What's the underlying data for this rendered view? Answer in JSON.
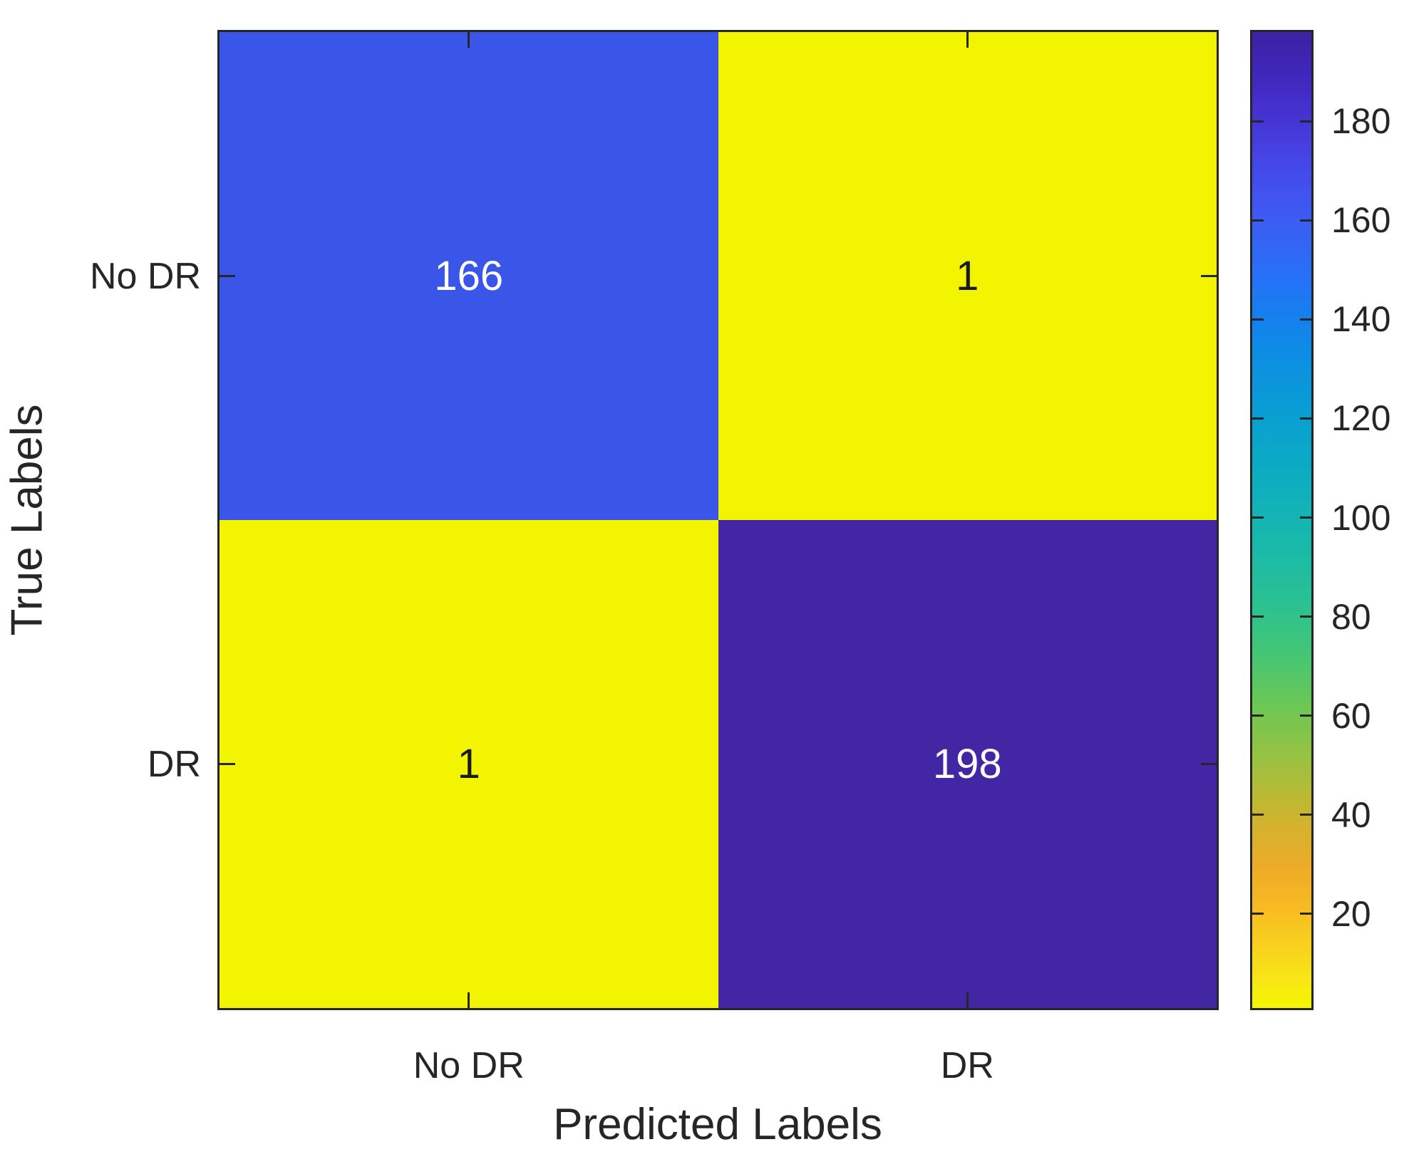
{
  "figure": {
    "background": "#ffffff",
    "axis_color": "#262626"
  },
  "chart_data": {
    "type": "heatmap",
    "title": "",
    "xlabel": "Predicted Labels",
    "ylabel": "True Labels",
    "x_categories": [
      "No DR",
      "DR"
    ],
    "y_categories": [
      "No DR",
      "DR"
    ],
    "values": [
      [
        166,
        1
      ],
      [
        1,
        198
      ]
    ],
    "cell_colors": [
      [
        "#3956E9",
        "#F3F500"
      ],
      [
        "#F3F500",
        "#4226A4"
      ]
    ],
    "cell_text_colors": [
      [
        "#ffffff",
        "#1a1a1a"
      ],
      [
        "#1a1a1a",
        "#ffffff"
      ]
    ],
    "legend_position": "right",
    "grid": false,
    "colorbar": {
      "min": 1,
      "max": 198,
      "tick_values": [
        180,
        160,
        140,
        120,
        100,
        80,
        60,
        40,
        20
      ],
      "gradient_top_to_bottom": [
        {
          "pos": 0.0,
          "color": "#3B21A5"
        },
        {
          "pos": 0.05,
          "color": "#4128BF"
        },
        {
          "pos": 0.1,
          "color": "#4638D9"
        },
        {
          "pos": 0.14,
          "color": "#4549EA"
        },
        {
          "pos": 0.19,
          "color": "#3D5BF2"
        },
        {
          "pos": 0.24,
          "color": "#2B6DF6"
        },
        {
          "pos": 0.29,
          "color": "#167FF0"
        },
        {
          "pos": 0.34,
          "color": "#0C90E2"
        },
        {
          "pos": 0.39,
          "color": "#0A9ED3"
        },
        {
          "pos": 0.44,
          "color": "#0BAAC5"
        },
        {
          "pos": 0.49,
          "color": "#12B3B7"
        },
        {
          "pos": 0.54,
          "color": "#1CBBA5"
        },
        {
          "pos": 0.59,
          "color": "#2CC18F"
        },
        {
          "pos": 0.64,
          "color": "#46C673"
        },
        {
          "pos": 0.69,
          "color": "#6CC755"
        },
        {
          "pos": 0.74,
          "color": "#95C243"
        },
        {
          "pos": 0.78,
          "color": "#B8BA35"
        },
        {
          "pos": 0.82,
          "color": "#D8B02B"
        },
        {
          "pos": 0.86,
          "color": "#EFAC27"
        },
        {
          "pos": 0.9,
          "color": "#F8BC22"
        },
        {
          "pos": 0.94,
          "color": "#F9D31E"
        },
        {
          "pos": 0.97,
          "color": "#F8E517"
        },
        {
          "pos": 1.0,
          "color": "#F5F500"
        }
      ]
    }
  }
}
